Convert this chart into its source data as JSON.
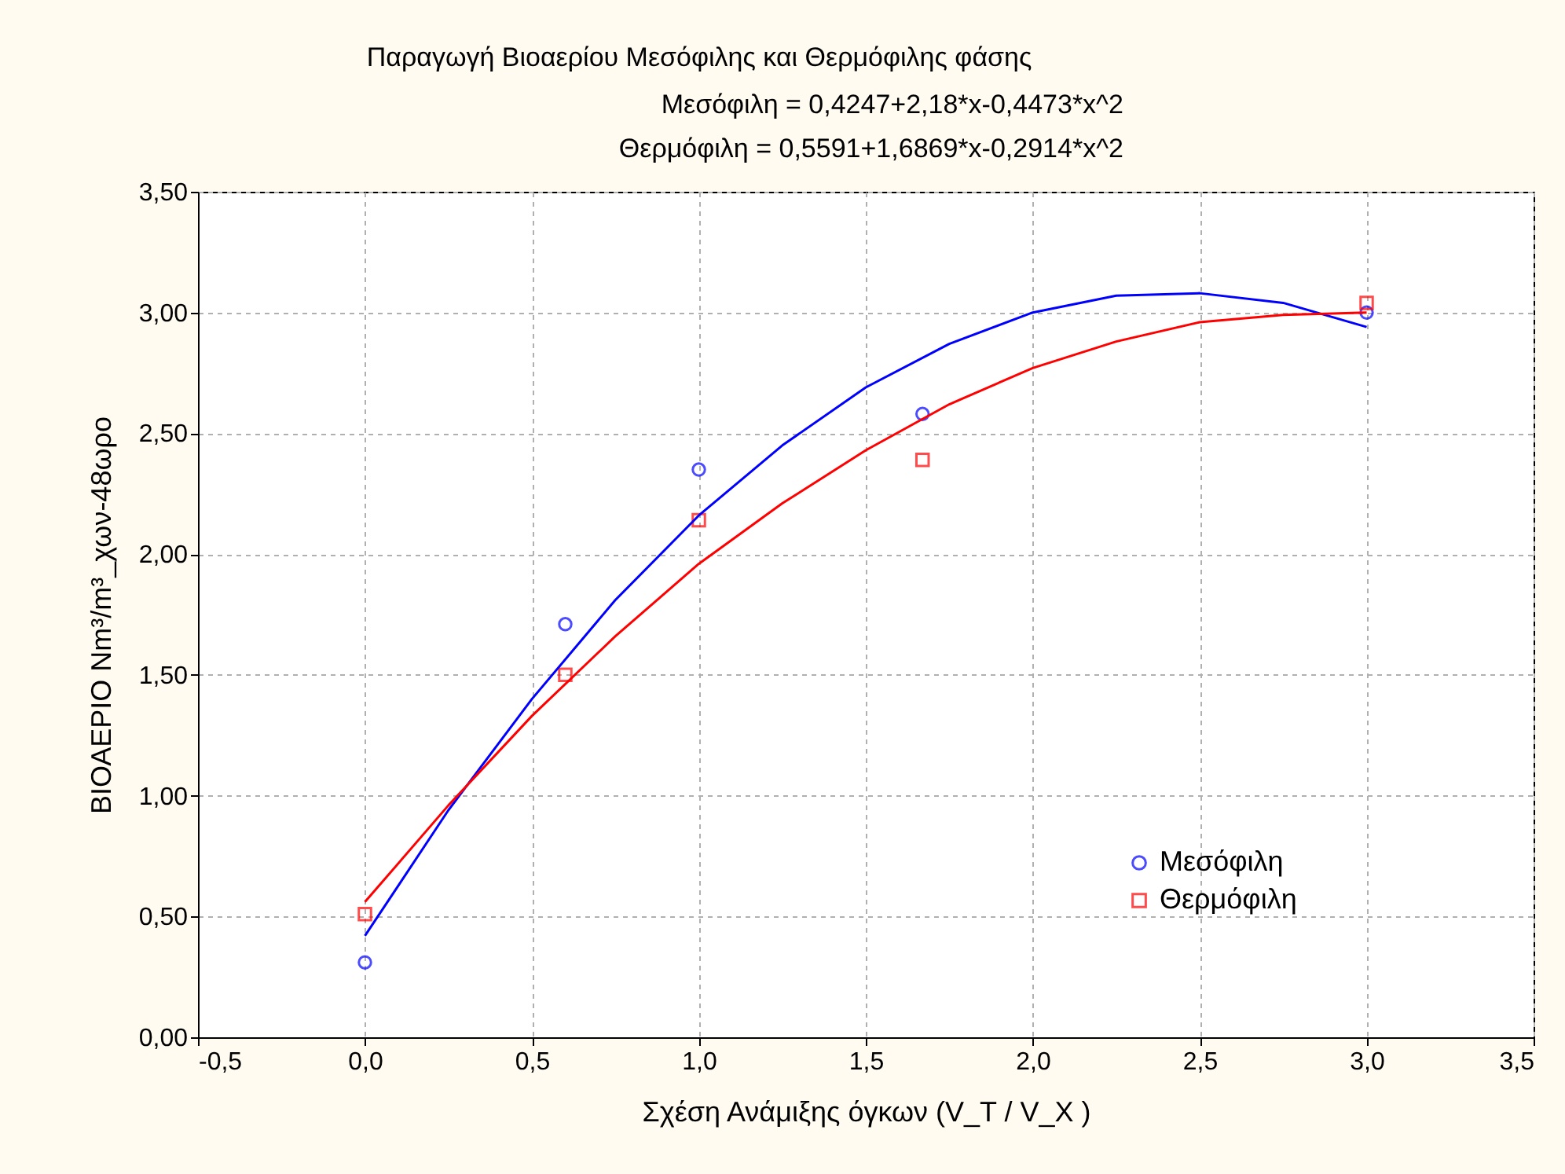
{
  "chart_data": {
    "type": "scatter",
    "title": "Παραγωγή Βιοαερίου Μεσόφιλης και Θερμόφιλης φάσης",
    "annotations": [
      "Μεσόφιλη = 0,4247+2,18*x-0,4473*x^2",
      "Θερμόφιλη = 0,5591+1,6869*x-0,2914*x^2"
    ],
    "xlabel": "Σχέση Ανάμιξης όγκων (V_Τ / V_Χ )",
    "ylabel": "ΒΙΟΑΕΡΙΟ Nm³/m³_χων-48ωρο",
    "xlim": [
      -0.5,
      3.5
    ],
    "ylim": [
      0,
      3.5
    ],
    "xticks": [
      {
        "value": -0.5,
        "label": "-0,5"
      },
      {
        "value": 0,
        "label": "0,0"
      },
      {
        "value": 0.5,
        "label": "0,5"
      },
      {
        "value": 1,
        "label": "1,0"
      },
      {
        "value": 1.5,
        "label": "1,5"
      },
      {
        "value": 2,
        "label": "2,0"
      },
      {
        "value": 2.5,
        "label": "2,5"
      },
      {
        "value": 3,
        "label": "3,0"
      },
      {
        "value": 3.5,
        "label": "3,5"
      }
    ],
    "yticks": [
      {
        "value": 0,
        "label": "0,00"
      },
      {
        "value": 0.5,
        "label": "0,50"
      },
      {
        "value": 1,
        "label": "1,00"
      },
      {
        "value": 1.5,
        "label": "1,50"
      },
      {
        "value": 2,
        "label": "2,00"
      },
      {
        "value": 2.5,
        "label": "2,50"
      },
      {
        "value": 3,
        "label": "3,00"
      },
      {
        "value": 3.5,
        "label": "3,50"
      }
    ],
    "grid": true,
    "legend": "bottom right",
    "series": [
      {
        "name": "Μεσόφιλη",
        "marker": "circle",
        "color": "#0000ff",
        "x": [
          0,
          0.6,
          1,
          1.67,
          3
        ],
        "values": [
          0.31,
          1.71,
          2.35,
          2.58,
          3.0
        ]
      },
      {
        "name": "Θερμόφιλη",
        "marker": "square",
        "color": "#ff0000",
        "x": [
          0,
          0.6,
          1,
          1.67,
          3
        ],
        "values": [
          0.51,
          1.5,
          2.14,
          2.39,
          3.04
        ]
      },
      {
        "type": "line",
        "color": "#0000ff",
        "x": [
          0,
          0.25,
          0.5,
          0.75,
          1,
          1.25,
          1.5,
          1.75,
          2,
          2.25,
          2.5,
          2.75,
          3
        ],
        "values": [
          0.42,
          0.94,
          1.4,
          1.81,
          2.16,
          2.45,
          2.69,
          2.87,
          3.0,
          3.07,
          3.08,
          3.04,
          2.94
        ]
      },
      {
        "type": "line",
        "color": "#ff0000",
        "x": [
          0,
          0.25,
          0.5,
          0.75,
          1,
          1.25,
          1.5,
          1.75,
          2,
          2.25,
          2.5,
          2.75,
          3
        ],
        "values": [
          0.56,
          0.96,
          1.33,
          1.66,
          1.96,
          2.21,
          2.43,
          2.62,
          2.77,
          2.88,
          2.96,
          2.99,
          3.0
        ]
      }
    ]
  }
}
